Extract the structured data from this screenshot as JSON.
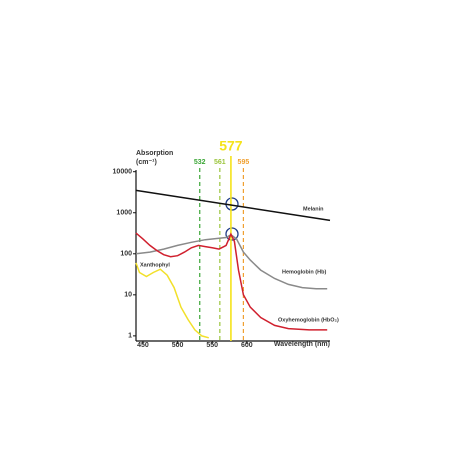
{
  "chart_data": {
    "type": "line",
    "ylabel": "Absorption",
    "ylabel_unit": "(cm⁻¹)",
    "xlabel": "Wavelength (nm)",
    "xlim": [
      440,
      720
    ],
    "xticks": [
      450,
      500,
      550,
      600
    ],
    "ylim": [
      0.75,
      11000
    ],
    "yticks": [
      1,
      10,
      100,
      1000,
      10000
    ],
    "ylog": true,
    "markers": [
      {
        "x": 532,
        "color": "#3aa635",
        "style": "dashed"
      },
      {
        "x": 561,
        "color": "#9bc53d",
        "style": "dashed"
      },
      {
        "x": 577,
        "color": "#f5e31b",
        "style": "solid"
      },
      {
        "x": 595,
        "color": "#f0a030",
        "style": "dashed"
      }
    ],
    "series": [
      {
        "name": "Melanin",
        "color": "#111111",
        "x": [
          440,
          720
        ],
        "values": [
          3500,
          650
        ]
      },
      {
        "name": "Hemoglobin (Hb)",
        "color": "#8a8a8a",
        "x": [
          440,
          460,
          480,
          500,
          520,
          540,
          560,
          570,
          577,
          585,
          595,
          605,
          620,
          640,
          660,
          680,
          700,
          716
        ],
        "values": [
          100,
          110,
          130,
          160,
          190,
          220,
          240,
          250,
          290,
          230,
          110,
          70,
          40,
          25,
          18,
          15,
          14,
          14
        ]
      },
      {
        "name": "Oxyhemoglobin (HbO₂)",
        "color": "#d0202e",
        "x": [
          440,
          450,
          460,
          470,
          480,
          490,
          500,
          510,
          520,
          530,
          540,
          550,
          560,
          570,
          577,
          582,
          588,
          595,
          605,
          620,
          640,
          660,
          690,
          716
        ],
        "values": [
          320,
          230,
          160,
          120,
          95,
          85,
          90,
          110,
          140,
          160,
          150,
          140,
          130,
          160,
          300,
          200,
          40,
          10,
          5,
          2.8,
          1.8,
          1.5,
          1.4,
          1.4
        ]
      },
      {
        "name": "Xanthophyl",
        "color": "#f2e02a",
        "x": [
          440,
          445,
          455,
          465,
          475,
          485,
          495,
          505,
          515,
          525,
          535,
          545
        ],
        "values": [
          60,
          35,
          28,
          35,
          42,
          30,
          15,
          5,
          2.5,
          1.4,
          1.0,
          0.9
        ]
      }
    ]
  }
}
